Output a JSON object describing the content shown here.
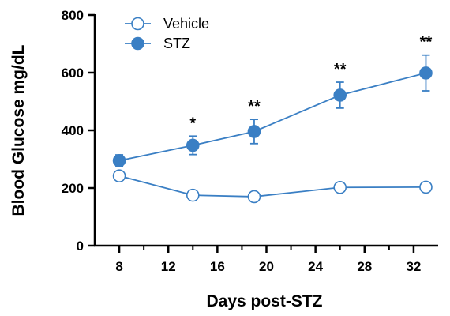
{
  "chart_data": {
    "type": "line",
    "xlabel": "Days post-STZ",
    "ylabel": "Blood Glucose mg/dL",
    "xlim": [
      6,
      34
    ],
    "ylim": [
      0,
      800
    ],
    "xticks": [
      8,
      12,
      16,
      20,
      24,
      28,
      32
    ],
    "yticks": [
      0,
      200,
      400,
      600,
      800
    ],
    "legend_position": "top-left",
    "grid": false,
    "series": [
      {
        "name": "Vehicle",
        "marker": "open-circle",
        "color": "#3a7fc4",
        "x": [
          8,
          14,
          19,
          26,
          33
        ],
        "y": [
          242,
          175,
          170,
          202,
          203
        ],
        "error": [
          0,
          0,
          0,
          0,
          0
        ]
      },
      {
        "name": "STZ",
        "marker": "filled-circle",
        "color": "#3a7fc4",
        "x": [
          8,
          14,
          19,
          26,
          33
        ],
        "y": [
          295,
          348,
          396,
          522,
          599
        ],
        "error": [
          20,
          32,
          42,
          45,
          62
        ]
      }
    ],
    "annotations": [
      {
        "x": 14,
        "text": "*"
      },
      {
        "x": 19,
        "text": "**"
      },
      {
        "x": 26,
        "text": "**"
      },
      {
        "x": 33,
        "text": "**"
      }
    ]
  }
}
